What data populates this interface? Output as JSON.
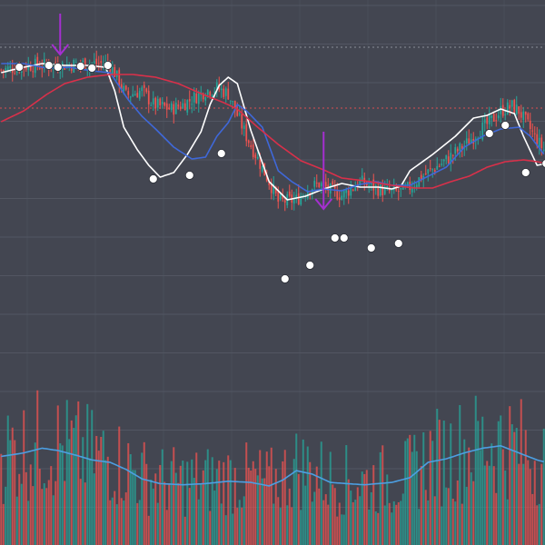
{
  "colors": {
    "background": "#434651",
    "grid": "#525662",
    "candle_up": "#26a69a",
    "candle_down": "#ef5350",
    "fast_ma": "#ffffff",
    "mid_ma": "#3f68d9",
    "slow_ma": "#d9304a",
    "volume_ma": "#4c9fe3",
    "signal_arrow": "#a52fd0",
    "ref_line_dotted": "#9aa0aa",
    "ref_line_red": "#ff5252",
    "marker_fill": "#ffffff"
  },
  "chart_data": {
    "type": "candlestick",
    "title": "",
    "xlabel": "",
    "ylabel": "",
    "grid": true,
    "price_axis": {
      "ylim": [
        -60,
        540
      ]
    },
    "candle_count": 240,
    "reference_lines": [
      {
        "style": "dotted",
        "color": "ref_line_dotted",
        "y": 488
      },
      {
        "style": "dotted",
        "color": "ref_line_red",
        "y": 421
      }
    ],
    "price_path_anchors": [
      [
        0,
        463
      ],
      [
        12,
        468
      ],
      [
        25,
        468
      ],
      [
        35,
        470
      ],
      [
        47,
        470
      ],
      [
        50,
        460
      ],
      [
        55,
        435
      ],
      [
        62,
        440
      ],
      [
        67,
        425
      ],
      [
        75,
        420
      ],
      [
        80,
        425
      ],
      [
        90,
        440
      ],
      [
        95,
        443
      ],
      [
        100,
        437
      ],
      [
        108,
        390
      ],
      [
        115,
        355
      ],
      [
        120,
        330
      ],
      [
        122,
        318
      ],
      [
        130,
        320
      ],
      [
        135,
        332
      ],
      [
        140,
        338
      ],
      [
        145,
        330
      ],
      [
        150,
        325
      ],
      [
        158,
        340
      ],
      [
        166,
        332
      ],
      [
        172,
        328
      ],
      [
        178,
        330
      ],
      [
        185,
        345
      ],
      [
        195,
        362
      ],
      [
        205,
        382
      ],
      [
        210,
        395
      ],
      [
        215,
        405
      ],
      [
        220,
        418
      ],
      [
        225,
        423
      ],
      [
        228,
        418
      ],
      [
        232,
        402
      ],
      [
        236,
        385
      ],
      [
        240,
        372
      ]
    ],
    "moving_averages": [
      {
        "color": "fast_ma",
        "values": [
          [
            0,
            460
          ],
          [
            8,
            465
          ],
          [
            18,
            470
          ],
          [
            28,
            468
          ],
          [
            38,
            468
          ],
          [
            46,
            466
          ],
          [
            50,
            440
          ],
          [
            54,
            400
          ],
          [
            60,
            375
          ],
          [
            65,
            358
          ],
          [
            70,
            345
          ],
          [
            76,
            350
          ],
          [
            82,
            370
          ],
          [
            88,
            395
          ],
          [
            92,
            425
          ],
          [
            96,
            446
          ],
          [
            100,
            455
          ],
          [
            104,
            448
          ],
          [
            110,
            396
          ],
          [
            118,
            340
          ],
          [
            126,
            320
          ],
          [
            134,
            324
          ],
          [
            142,
            332
          ],
          [
            150,
            338
          ],
          [
            158,
            334
          ],
          [
            166,
            334
          ],
          [
            172,
            332
          ],
          [
            176,
            335
          ],
          [
            180,
            352
          ],
          [
            190,
            370
          ],
          [
            200,
            390
          ],
          [
            208,
            410
          ],
          [
            214,
            413
          ],
          [
            220,
            420
          ],
          [
            226,
            415
          ],
          [
            230,
            390
          ],
          [
            236,
            358
          ],
          [
            240,
            360
          ]
        ]
      },
      {
        "color": "mid_ma",
        "values": [
          [
            0,
            470
          ],
          [
            10,
            470
          ],
          [
            20,
            465
          ],
          [
            30,
            466
          ],
          [
            40,
            462
          ],
          [
            48,
            460
          ],
          [
            56,
            430
          ],
          [
            62,
            412
          ],
          [
            68,
            398
          ],
          [
            76,
            378
          ],
          [
            84,
            365
          ],
          [
            90,
            367
          ],
          [
            95,
            390
          ],
          [
            100,
            405
          ],
          [
            104,
            425
          ],
          [
            108,
            418
          ],
          [
            115,
            400
          ],
          [
            122,
            352
          ],
          [
            128,
            340
          ],
          [
            135,
            329
          ],
          [
            142,
            332
          ],
          [
            150,
            330
          ],
          [
            158,
            337
          ],
          [
            165,
            340
          ],
          [
            172,
            336
          ],
          [
            180,
            336
          ],
          [
            188,
            346
          ],
          [
            196,
            356
          ],
          [
            204,
            378
          ],
          [
            212,
            390
          ],
          [
            220,
            398
          ],
          [
            228,
            400
          ],
          [
            233,
            390
          ],
          [
            240,
            367
          ]
        ]
      },
      {
        "color": "slow_ma",
        "values": [
          [
            0,
            406
          ],
          [
            10,
            418
          ],
          [
            20,
            436
          ],
          [
            28,
            448
          ],
          [
            38,
            455
          ],
          [
            48,
            458
          ],
          [
            58,
            458
          ],
          [
            68,
            455
          ],
          [
            78,
            448
          ],
          [
            88,
            437
          ],
          [
            98,
            427
          ],
          [
            104,
            420
          ],
          [
            112,
            402
          ],
          [
            122,
            381
          ],
          [
            132,
            363
          ],
          [
            142,
            353
          ],
          [
            150,
            344
          ],
          [
            160,
            341
          ],
          [
            172,
            336
          ],
          [
            182,
            333
          ],
          [
            190,
            333
          ],
          [
            198,
            340
          ],
          [
            206,
            346
          ],
          [
            214,
            356
          ],
          [
            222,
            362
          ],
          [
            230,
            364
          ],
          [
            236,
            362
          ],
          [
            240,
            360
          ]
        ]
      }
    ],
    "signal_markers": [
      {
        "i": 8,
        "v": 466
      },
      {
        "i": 21,
        "v": 468
      },
      {
        "i": 25,
        "v": 466
      },
      {
        "i": 35,
        "v": 467
      },
      {
        "i": 40,
        "v": 465
      },
      {
        "i": 47,
        "v": 468
      },
      {
        "i": 67,
        "v": 343
      },
      {
        "i": 83,
        "v": 347
      },
      {
        "i": 97,
        "v": 371
      },
      {
        "i": 125,
        "v": 233
      },
      {
        "i": 136,
        "v": 248
      },
      {
        "i": 147,
        "v": 278
      },
      {
        "i": 151,
        "v": 278
      },
      {
        "i": 163,
        "v": 267
      },
      {
        "i": 175,
        "v": 272
      },
      {
        "i": 215,
        "v": 393
      },
      {
        "i": 222,
        "v": 402
      },
      {
        "i": 231,
        "v": 350
      },
      {
        "i": 240,
        "v": 360
      }
    ],
    "signal_arrows": [
      {
        "i": 26,
        "direction": "down"
      },
      {
        "i": 142,
        "direction": "down"
      }
    ],
    "volume": {
      "ma_values": [
        [
          0,
          75
        ],
        [
          10,
          78
        ],
        [
          18,
          82
        ],
        [
          25,
          80
        ],
        [
          33,
          76
        ],
        [
          40,
          72
        ],
        [
          48,
          70
        ],
        [
          55,
          64
        ],
        [
          62,
          56
        ],
        [
          70,
          52
        ],
        [
          80,
          51
        ],
        [
          90,
          52
        ],
        [
          100,
          54
        ],
        [
          110,
          53
        ],
        [
          118,
          50
        ],
        [
          124,
          55
        ],
        [
          130,
          63
        ],
        [
          137,
          60
        ],
        [
          145,
          53
        ],
        [
          152,
          52
        ],
        [
          160,
          51
        ],
        [
          172,
          53
        ],
        [
          180,
          57
        ],
        [
          188,
          70
        ],
        [
          196,
          73
        ],
        [
          204,
          78
        ],
        [
          212,
          82
        ],
        [
          220,
          84
        ],
        [
          228,
          78
        ],
        [
          236,
          72
        ],
        [
          240,
          70
        ]
      ]
    }
  }
}
